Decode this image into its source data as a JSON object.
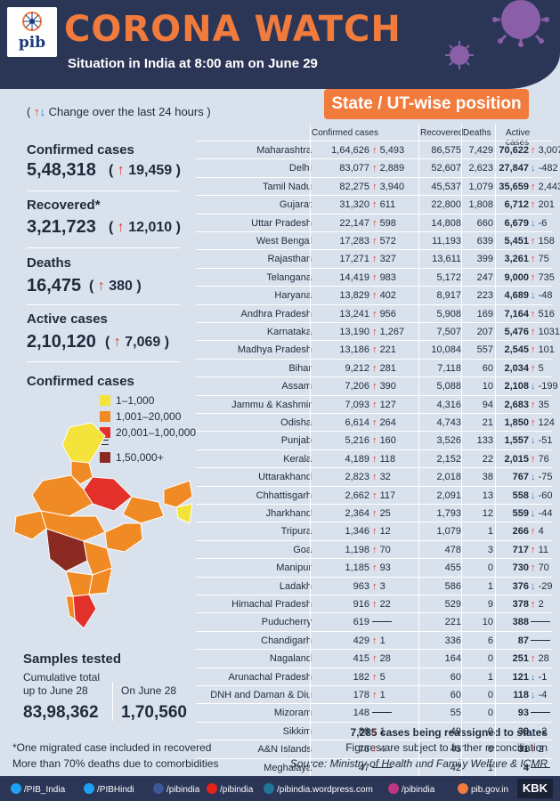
{
  "header": {
    "logo": "pib",
    "title": "CORONA WATCH",
    "subtitle": "Situation in India at 8:00 am on June 29"
  },
  "section_title": "State / UT-wise position",
  "change_note": "Change over the last 24 hours",
  "stats": {
    "confirmed": {
      "label": "Confirmed cases",
      "value": "5,48,318",
      "change": "19,459"
    },
    "recovered": {
      "label": "Recovered*",
      "value": "3,21,723",
      "change": "12,010"
    },
    "deaths": {
      "label": "Deaths",
      "value": "16,475",
      "change": "380"
    },
    "active": {
      "label": "Active cases",
      "value": "2,10,120",
      "change": "7,069"
    }
  },
  "legend": {
    "title": "Confirmed cases",
    "items": [
      {
        "label": "1–1,000",
        "color": "#f3e33a"
      },
      {
        "label": "1,001–20,000",
        "color": "#f08a24"
      },
      {
        "label": "20,001–1,00,000",
        "color": "#e3302a"
      },
      {
        "label": "1,50,000+",
        "color": "#8a2a22"
      }
    ]
  },
  "samples": {
    "title": "Samples tested",
    "cumulative_label_1": "Cumulative total",
    "cumulative_label_2": "up to June 28",
    "cumulative_value": "83,98,362",
    "day_label": "On June 28",
    "day_value": "1,70,560"
  },
  "table": {
    "headers": {
      "confirmed": "Confirmed cases",
      "recovered": "Recovered",
      "deaths": "Deaths",
      "active": "Active cases"
    },
    "rows": [
      {
        "state": "Maharashtra",
        "confirmed": "1,64,626",
        "conf_change": "5,493",
        "recovered": "86,575",
        "deaths": "7,429",
        "active": "70,622",
        "act_dir": "up",
        "act_change": "3,007"
      },
      {
        "state": "Delhi",
        "confirmed": "83,077",
        "conf_change": "2,889",
        "recovered": "52,607",
        "deaths": "2,623",
        "active": "27,847",
        "act_dir": "down",
        "act_change": "-482"
      },
      {
        "state": "Tamil Nadu",
        "confirmed": "82,275",
        "conf_change": "3,940",
        "recovered": "45,537",
        "deaths": "1,079",
        "active": "35,659",
        "act_dir": "up",
        "act_change": "2,443"
      },
      {
        "state": "Gujarat",
        "confirmed": "31,320",
        "conf_change": "611",
        "recovered": "22,800",
        "deaths": "1,808",
        "active": "6,712",
        "act_dir": "up",
        "act_change": "201"
      },
      {
        "state": "Uttar Pradesh",
        "confirmed": "22,147",
        "conf_change": "598",
        "recovered": "14,808",
        "deaths": "660",
        "active": "6,679",
        "act_dir": "down",
        "act_change": "-6"
      },
      {
        "state": "West Bengal",
        "confirmed": "17,283",
        "conf_change": "572",
        "recovered": "11,193",
        "deaths": "639",
        "active": "5,451",
        "act_dir": "up",
        "act_change": "158"
      },
      {
        "state": "Rajasthan",
        "confirmed": "17,271",
        "conf_change": "327",
        "recovered": "13,611",
        "deaths": "399",
        "active": "3,261",
        "act_dir": "up",
        "act_change": "75"
      },
      {
        "state": "Telangana",
        "confirmed": "14,419",
        "conf_change": "983",
        "recovered": "5,172",
        "deaths": "247",
        "active": "9,000",
        "act_dir": "up",
        "act_change": "735"
      },
      {
        "state": "Haryana",
        "confirmed": "13,829",
        "conf_change": "402",
        "recovered": "8,917",
        "deaths": "223",
        "active": "4,689",
        "act_dir": "down",
        "act_change": "-48"
      },
      {
        "state": "Andhra Pradesh",
        "confirmed": "13,241",
        "conf_change": "956",
        "recovered": "5,908",
        "deaths": "169",
        "active": "7,164",
        "act_dir": "up",
        "act_change": "516"
      },
      {
        "state": "Karnataka",
        "confirmed": "13,190",
        "conf_change": "1,267",
        "recovered": "7,507",
        "deaths": "207",
        "active": "5,476",
        "act_dir": "up",
        "act_change": "1031"
      },
      {
        "state": "Madhya Pradesh",
        "confirmed": "13,186",
        "conf_change": "221",
        "recovered": "10,084",
        "deaths": "557",
        "active": "2,545",
        "act_dir": "up",
        "act_change": "101"
      },
      {
        "state": "Bihar",
        "confirmed": "9,212",
        "conf_change": "281",
        "recovered": "7,118",
        "deaths": "60",
        "active": "2,034",
        "act_dir": "up",
        "act_change": "5"
      },
      {
        "state": "Assam",
        "confirmed": "7,206",
        "conf_change": "390",
        "recovered": "5,088",
        "deaths": "10",
        "active": "2,108",
        "act_dir": "down",
        "act_change": "-199"
      },
      {
        "state": "Jammu & Kashmir",
        "confirmed": "7,093",
        "conf_change": "127",
        "recovered": "4,316",
        "deaths": "94",
        "active": "2,683",
        "act_dir": "up",
        "act_change": "35"
      },
      {
        "state": "Odisha",
        "confirmed": "6,614",
        "conf_change": "264",
        "recovered": "4,743",
        "deaths": "21",
        "active": "1,850",
        "act_dir": "up",
        "act_change": "124"
      },
      {
        "state": "Punjab",
        "confirmed": "5,216",
        "conf_change": "160",
        "recovered": "3,526",
        "deaths": "133",
        "active": "1,557",
        "act_dir": "down",
        "act_change": "-51"
      },
      {
        "state": "Kerala",
        "confirmed": "4,189",
        "conf_change": "118",
        "recovered": "2,152",
        "deaths": "22",
        "active": "2,015",
        "act_dir": "up",
        "act_change": "76"
      },
      {
        "state": "Uttarakhand",
        "confirmed": "2,823",
        "conf_change": "32",
        "recovered": "2,018",
        "deaths": "38",
        "active": "767",
        "act_dir": "down",
        "act_change": "-75"
      },
      {
        "state": "Chhattisgarh",
        "confirmed": "2,662",
        "conf_change": "117",
        "recovered": "2,091",
        "deaths": "13",
        "active": "558",
        "act_dir": "down",
        "act_change": "-60"
      },
      {
        "state": "Jharkhand",
        "confirmed": "2,364",
        "conf_change": "25",
        "recovered": "1,793",
        "deaths": "12",
        "active": "559",
        "act_dir": "down",
        "act_change": "-44"
      },
      {
        "state": "Tripura",
        "confirmed": "1,346",
        "conf_change": "12",
        "recovered": "1,079",
        "deaths": "1",
        "active": "266",
        "act_dir": "up",
        "act_change": "4"
      },
      {
        "state": "Goa",
        "confirmed": "1,198",
        "conf_change": "70",
        "recovered": "478",
        "deaths": "3",
        "active": "717",
        "act_dir": "up",
        "act_change": "11"
      },
      {
        "state": "Manipur",
        "confirmed": "1,185",
        "conf_change": "93",
        "recovered": "455",
        "deaths": "0",
        "active": "730",
        "act_dir": "up",
        "act_change": "70"
      },
      {
        "state": "Ladakh",
        "confirmed": "963",
        "conf_change": "3",
        "recovered": "586",
        "deaths": "1",
        "active": "376",
        "act_dir": "down",
        "act_change": "-29"
      },
      {
        "state": "Himachal Pradesh",
        "confirmed": "916",
        "conf_change": "22",
        "recovered": "529",
        "deaths": "9",
        "active": "378",
        "act_dir": "up",
        "act_change": "2"
      },
      {
        "state": "Puducherry",
        "confirmed": "619",
        "conf_change": "",
        "recovered": "221",
        "deaths": "10",
        "active": "388",
        "act_dir": "none",
        "act_change": ""
      },
      {
        "state": "Chandigarh",
        "confirmed": "429",
        "conf_change": "1",
        "recovered": "336",
        "deaths": "6",
        "active": "87",
        "act_dir": "none",
        "act_change": ""
      },
      {
        "state": "Nagaland",
        "confirmed": "415",
        "conf_change": "28",
        "recovered": "164",
        "deaths": "0",
        "active": "251",
        "act_dir": "up",
        "act_change": "28"
      },
      {
        "state": "Arunachal Pradesh",
        "confirmed": "182",
        "conf_change": "5",
        "recovered": "60",
        "deaths": "1",
        "active": "121",
        "act_dir": "down",
        "act_change": "-1"
      },
      {
        "state": "DNH and Daman & Diu",
        "confirmed": "178",
        "conf_change": "1",
        "recovered": "60",
        "deaths": "0",
        "active": "118",
        "act_dir": "down",
        "act_change": "-4"
      },
      {
        "state": "Mizoram",
        "confirmed": "148",
        "conf_change": "",
        "recovered": "55",
        "deaths": "0",
        "active": "93",
        "act_dir": "none",
        "act_change": ""
      },
      {
        "state": "Sikkim",
        "confirmed": "88",
        "conf_change": "1",
        "recovered": "49",
        "deaths": "0",
        "active": "39",
        "act_dir": "down",
        "act_change": "-2"
      },
      {
        "state": "A&N Islands",
        "confirmed": "76",
        "conf_change": "4",
        "recovered": "45",
        "deaths": "0",
        "active": "31",
        "act_dir": "up",
        "act_change": "2"
      },
      {
        "state": "Meghalaya",
        "confirmed": "47",
        "conf_change": "",
        "recovered": "42",
        "deaths": "1",
        "active": "4",
        "act_dir": "none",
        "act_change": ""
      }
    ]
  },
  "notes": {
    "left1": "*One migrated case included in recovered",
    "left2": "More than 70% deaths due to comorbidities",
    "right1": "7,285 cases being reassigned to states",
    "right2": "Figures are subject to further reconciliation",
    "right3": "Source: Ministry of Health and Family Welfare & ICMR"
  },
  "footer": {
    "items": [
      {
        "label": "/PIB_India",
        "icon": "twitter-icon",
        "color": "#1da1f2"
      },
      {
        "label": "/PIBHindi",
        "icon": "twitter-icon",
        "color": "#1da1f2"
      },
      {
        "label": "/pibindia",
        "icon": "facebook-icon",
        "color": "#3b5998"
      },
      {
        "label": "/pibindia",
        "icon": "youtube-icon",
        "color": "#e62117"
      },
      {
        "label": "/pibindia.wordpress.com",
        "icon": "wordpress-icon",
        "color": "#21759b"
      },
      {
        "label": "/pibindia",
        "icon": "instagram-icon",
        "color": "#c13584"
      },
      {
        "label": "pib.gov.in",
        "icon": "pib-icon",
        "color": "#f07b3d"
      }
    ],
    "brand": "KBK"
  }
}
